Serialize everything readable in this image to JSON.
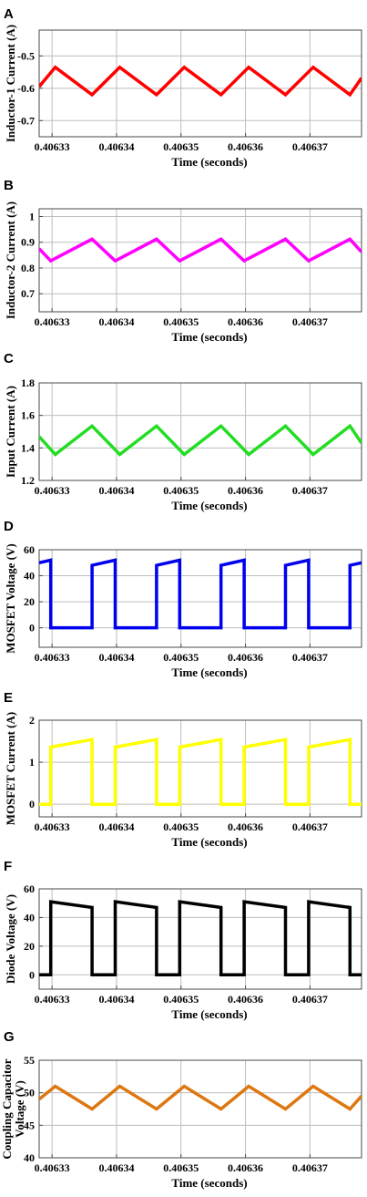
{
  "colors": {
    "A": "#ff0000",
    "B": "#ff00ff",
    "C": "#22dd22",
    "D": "#0000ee",
    "E": "#ffff00",
    "F": "#000000",
    "G": "#dd7711"
  },
  "chart_data": [
    {
      "panel": "A",
      "type": "line",
      "ylabel": "Inductor-1 Current (A)",
      "xlabel": "Time (seconds)",
      "xlim": [
        0.406328,
        0.406378
      ],
      "ylim": [
        -0.75,
        -0.42
      ],
      "yticks": [
        -0.5,
        -0.6,
        -0.7
      ],
      "ytick_labels": [
        "-0.5",
        "-0.6",
        "-0.7"
      ],
      "xticks": [
        0.40633,
        0.40634,
        0.40635,
        0.40636,
        0.40637
      ],
      "xtick_labels": [
        "0.40633",
        "0.40634",
        "0.40635",
        "0.40636",
        "0.40637"
      ],
      "grid": true,
      "series": [
        {
          "x": [
            0.406328,
            0.4063305,
            0.4063362,
            0.4063405,
            0.4063462,
            0.4063505,
            0.4063562,
            0.4063605,
            0.4063662,
            0.4063705,
            0.4063762,
            0.406378
          ],
          "y": [
            -0.595,
            -0.535,
            -0.62,
            -0.535,
            -0.62,
            -0.535,
            -0.62,
            -0.535,
            -0.62,
            -0.535,
            -0.62,
            -0.568
          ]
        }
      ]
    },
    {
      "panel": "B",
      "type": "line",
      "ylabel": "Inductor-2 Current (A)",
      "xlabel": "Time (seconds)",
      "xlim": [
        0.406328,
        0.406378
      ],
      "ylim": [
        0.63,
        1.03
      ],
      "yticks": [
        1,
        0.9,
        0.8,
        0.7
      ],
      "ytick_labels": [
        "1",
        "0.9",
        "0.8",
        "0.7"
      ],
      "xticks": [
        0.40633,
        0.40634,
        0.40635,
        0.40636,
        0.40637
      ],
      "xtick_labels": [
        "0.40633",
        "0.40634",
        "0.40635",
        "0.40636",
        "0.40637"
      ],
      "grid": true,
      "series": [
        {
          "x": [
            0.406328,
            0.4063298,
            0.4063362,
            0.4063398,
            0.4063462,
            0.4063498,
            0.4063562,
            0.4063598,
            0.4063662,
            0.4063698,
            0.4063762,
            0.406378
          ],
          "y": [
            0.875,
            0.828,
            0.912,
            0.828,
            0.912,
            0.828,
            0.912,
            0.828,
            0.912,
            0.828,
            0.912,
            0.862
          ]
        }
      ]
    },
    {
      "panel": "C",
      "type": "line",
      "ylabel": "Input Current (A)",
      "xlabel": "Time (seconds)",
      "xlim": [
        0.406328,
        0.406378
      ],
      "ylim": [
        1.2,
        1.8
      ],
      "yticks": [
        1.8,
        1.6,
        1.4,
        1.2
      ],
      "ytick_labels": [
        "1.8",
        "1.6",
        "1.4",
        "1.2"
      ],
      "xticks": [
        0.40633,
        0.40634,
        0.40635,
        0.40636,
        0.40637
      ],
      "xtick_labels": [
        "0.40633",
        "0.40634",
        "0.40635",
        "0.40636",
        "0.40637"
      ],
      "grid": true,
      "series": [
        {
          "x": [
            0.406328,
            0.4063305,
            0.4063362,
            0.4063405,
            0.4063462,
            0.4063505,
            0.4063562,
            0.4063605,
            0.4063662,
            0.4063705,
            0.4063762,
            0.406378
          ],
          "y": [
            1.47,
            1.36,
            1.535,
            1.36,
            1.535,
            1.36,
            1.535,
            1.36,
            1.535,
            1.36,
            1.535,
            1.43
          ]
        }
      ]
    },
    {
      "panel": "D",
      "type": "line",
      "ylabel": "MOSFET Voltage (V)",
      "xlabel": "Time (seconds)",
      "xlim": [
        0.406328,
        0.406378
      ],
      "ylim": [
        -15,
        60
      ],
      "yticks": [
        60,
        40,
        20,
        0
      ],
      "ytick_labels": [
        "60",
        "40",
        "20",
        "0"
      ],
      "xticks": [
        0.40633,
        0.40634,
        0.40635,
        0.40636,
        0.40637
      ],
      "xtick_labels": [
        "0.40633",
        "0.40634",
        "0.40635",
        "0.40636",
        "0.40637"
      ],
      "grid": true,
      "series": [
        {
          "x": [
            0.406328,
            0.4063298,
            0.4063298,
            0.4063362,
            0.4063362,
            0.4063398,
            0.4063398,
            0.4063462,
            0.4063462,
            0.4063498,
            0.4063498,
            0.4063562,
            0.4063562,
            0.4063598,
            0.4063598,
            0.4063662,
            0.4063662,
            0.4063698,
            0.4063698,
            0.4063762,
            0.4063762,
            0.406378
          ],
          "y": [
            50,
            52,
            0,
            0,
            48,
            52,
            0,
            0,
            48,
            52,
            0,
            0,
            48,
            52,
            0,
            0,
            48,
            52,
            0,
            0,
            48,
            50
          ]
        }
      ]
    },
    {
      "panel": "E",
      "type": "line",
      "ylabel": "MOSFET Current (A)",
      "xlabel": "Time (seconds)",
      "xlim": [
        0.406328,
        0.406378
      ],
      "ylim": [
        -0.3,
        2.0
      ],
      "yticks": [
        2,
        1,
        0
      ],
      "ytick_labels": [
        "2",
        "1",
        "0"
      ],
      "xticks": [
        0.40633,
        0.40634,
        0.40635,
        0.40636,
        0.40637
      ],
      "xtick_labels": [
        "0.40633",
        "0.40634",
        "0.40635",
        "0.40636",
        "0.40637"
      ],
      "grid": true,
      "series": [
        {
          "x": [
            0.406328,
            0.4063298,
            0.4063298,
            0.4063362,
            0.4063362,
            0.4063398,
            0.4063398,
            0.4063462,
            0.4063462,
            0.4063498,
            0.4063498,
            0.4063562,
            0.4063562,
            0.4063598,
            0.4063598,
            0.4063662,
            0.4063662,
            0.4063698,
            0.4063698,
            0.4063762,
            0.4063762,
            0.406378
          ],
          "y": [
            0,
            0,
            1.36,
            1.54,
            0,
            0,
            1.36,
            1.54,
            0,
            0,
            1.36,
            1.54,
            0,
            0,
            1.36,
            1.54,
            0,
            0,
            1.36,
            1.54,
            0,
            0
          ]
        }
      ]
    },
    {
      "panel": "F",
      "type": "line",
      "ylabel": "Diode Voltage (V)",
      "xlabel": "Time (seconds)",
      "xlim": [
        0.406328,
        0.406378
      ],
      "ylim": [
        -10,
        60
      ],
      "yticks": [
        60,
        40,
        20,
        0
      ],
      "ytick_labels": [
        "60",
        "40",
        "20",
        "0"
      ],
      "xticks": [
        0.40633,
        0.40634,
        0.40635,
        0.40636,
        0.40637
      ],
      "xtick_labels": [
        "0.40633",
        "0.40634",
        "0.40635",
        "0.40636",
        "0.40637"
      ],
      "grid": true,
      "series": [
        {
          "x": [
            0.406328,
            0.4063298,
            0.4063298,
            0.4063362,
            0.4063362,
            0.4063398,
            0.4063398,
            0.4063462,
            0.4063462,
            0.4063498,
            0.4063498,
            0.4063562,
            0.4063562,
            0.4063598,
            0.4063598,
            0.4063662,
            0.4063662,
            0.4063698,
            0.4063698,
            0.4063762,
            0.4063762,
            0.406378
          ],
          "y": [
            0,
            0,
            51,
            47,
            0,
            0,
            51,
            47,
            0,
            0,
            51,
            47,
            0,
            0,
            51,
            47,
            0,
            0,
            51,
            47,
            0,
            0
          ]
        }
      ]
    },
    {
      "panel": "G",
      "type": "line",
      "ylabel": "Coupling Capacitor Voltage (V)",
      "xlabel": "Time (seconds)",
      "xlim": [
        0.406328,
        0.406378
      ],
      "ylim": [
        40,
        55
      ],
      "yticks": [
        55,
        50,
        45,
        40
      ],
      "ytick_labels": [
        "55",
        "50",
        "45",
        "40"
      ],
      "xticks": [
        0.40633,
        0.40634,
        0.40635,
        0.40636,
        0.40637
      ],
      "xtick_labels": [
        "0.40633",
        "0.40634",
        "0.40635",
        "0.40636",
        "0.40637"
      ],
      "grid": true,
      "series": [
        {
          "x": [
            0.406328,
            0.4063305,
            0.4063362,
            0.4063405,
            0.4063462,
            0.4063505,
            0.4063562,
            0.4063605,
            0.4063662,
            0.4063705,
            0.4063762,
            0.406378
          ],
          "y": [
            49,
            51,
            47.5,
            51,
            47.5,
            51,
            47.5,
            51,
            47.5,
            51,
            47.5,
            49.5
          ]
        }
      ]
    }
  ]
}
